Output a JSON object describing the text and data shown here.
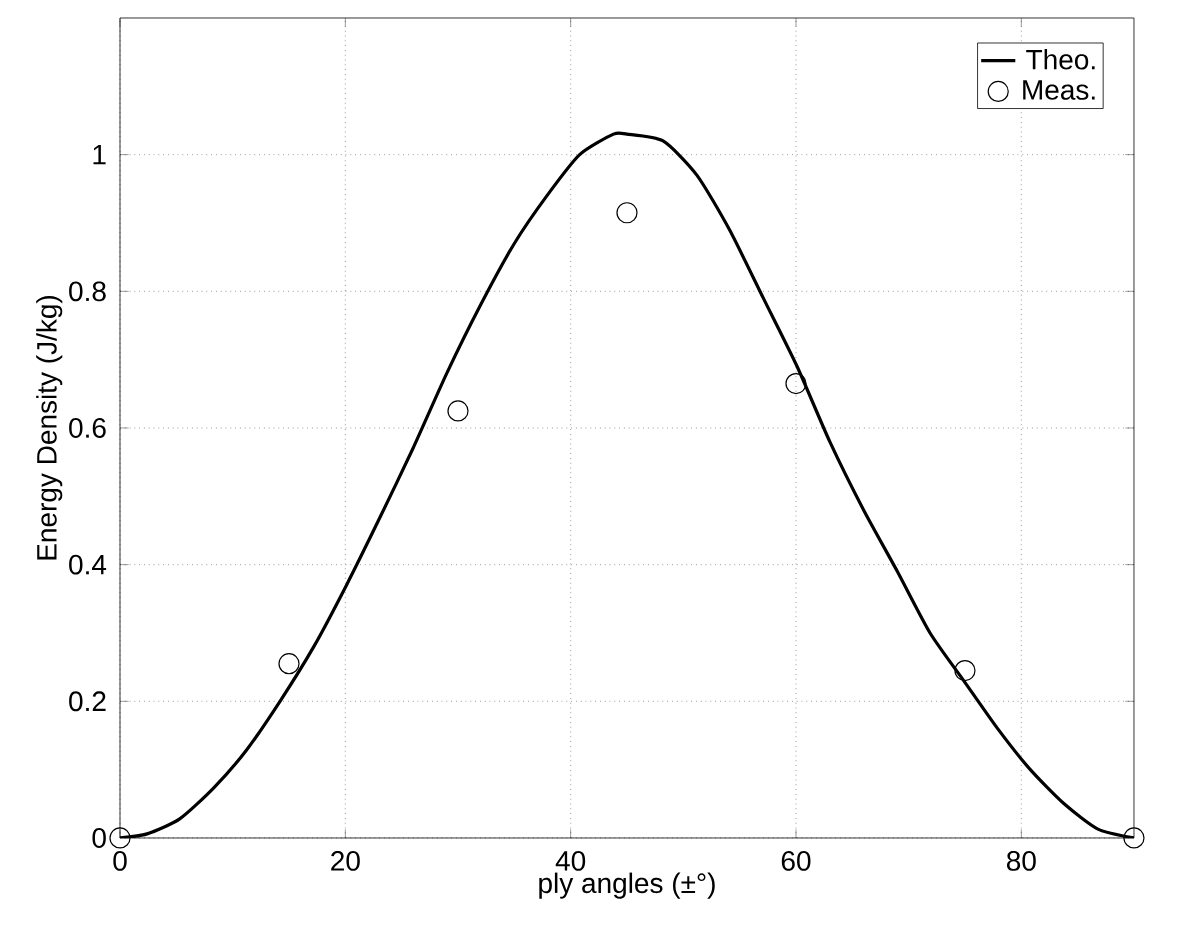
{
  "chart_data": {
    "type": "line",
    "xlabel": "ply angles (±°)",
    "ylabel": "Energy Density (J/kg)",
    "xlim": [
      0,
      90
    ],
    "ylim": [
      0,
      1.2
    ],
    "xticks": [
      0,
      20,
      40,
      60,
      80
    ],
    "yticks": [
      0,
      0.2,
      0.4,
      0.6,
      0.8,
      1
    ],
    "grid": true,
    "legend": "top right",
    "series": [
      {
        "name": "Theo.",
        "color": "#000000",
        "marker": "none",
        "line_style": "solid",
        "x": [
          0,
          2.4,
          5.3,
          8.3,
          11.2,
          14.2,
          17.2,
          20.1,
          23.1,
          26.0,
          29.0,
          32.0,
          35.0,
          37.9,
          40.8,
          43.8,
          45,
          48.2,
          51.2,
          54.1,
          57.1,
          60.1,
          63.0,
          66.0,
          69.0,
          71.9,
          74.9,
          77.9,
          80.8,
          83.8,
          86.8,
          90
        ],
        "values": [
          0,
          0.006,
          0.028,
          0.073,
          0.128,
          0.2,
          0.28,
          0.37,
          0.47,
          0.57,
          0.68,
          0.78,
          0.87,
          0.94,
          1.0,
          1.03,
          1.03,
          1.02,
          0.97,
          0.89,
          0.79,
          0.69,
          0.58,
          0.48,
          0.39,
          0.3,
          0.23,
          0.16,
          0.1,
          0.05,
          0.013,
          0
        ]
      },
      {
        "name": "Meas.",
        "type": "scatter",
        "color": "#000000",
        "marker": "circle",
        "x": [
          0,
          15,
          30,
          45,
          60,
          75,
          90
        ],
        "values": [
          0,
          0.255,
          0.625,
          0.915,
          0.665,
          0.245,
          0
        ]
      }
    ]
  }
}
